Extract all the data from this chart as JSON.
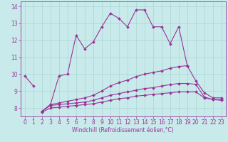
{
  "xlabel": "Windchill (Refroidissement éolien,°C)",
  "x_values": [
    0,
    1,
    2,
    3,
    4,
    5,
    6,
    7,
    8,
    9,
    10,
    11,
    12,
    13,
    14,
    15,
    16,
    17,
    18,
    19,
    20,
    21,
    22,
    23
  ],
  "main_line": [
    9.9,
    9.3,
    7.8,
    8.2,
    9.9,
    10.0,
    12.3,
    11.5,
    11.9,
    12.8,
    13.6,
    13.3,
    12.8,
    13.8,
    13.8,
    12.8,
    12.8,
    11.8,
    12.8,
    10.5,
    null,
    null,
    null,
    null
  ],
  "line2_split1_x": [
    0,
    1,
    2,
    3,
    4,
    5
  ],
  "line2_split1_y": [
    9.9,
    9.3,
    null,
    null,
    9.9,
    10.0
  ],
  "slow1": [
    null,
    null,
    7.8,
    8.2,
    8.3,
    8.4,
    8.5,
    8.6,
    8.75,
    9.0,
    9.3,
    9.5,
    9.65,
    9.85,
    10.0,
    10.1,
    10.2,
    10.35,
    10.45,
    10.5,
    9.6,
    8.9,
    8.6,
    8.6
  ],
  "slow2": [
    null,
    null,
    7.8,
    8.15,
    8.2,
    8.25,
    8.3,
    8.35,
    8.45,
    8.6,
    8.75,
    8.85,
    8.95,
    9.05,
    9.15,
    9.2,
    9.3,
    9.38,
    9.45,
    9.45,
    9.4,
    8.65,
    8.5,
    8.5
  ],
  "slow3": [
    null,
    null,
    7.75,
    8.0,
    8.05,
    8.1,
    8.15,
    8.2,
    8.25,
    8.35,
    8.45,
    8.55,
    8.6,
    8.7,
    8.75,
    8.8,
    8.85,
    8.9,
    8.95,
    8.95,
    8.95,
    8.6,
    8.5,
    8.45
  ],
  "color": "#993399",
  "bg_color": "#c8eaea",
  "grid_color": "#aad4d4",
  "ylim": [
    7.5,
    14.3
  ],
  "xlim": [
    -0.5,
    23.5
  ],
  "yticks": [
    8,
    9,
    10,
    11,
    12,
    13,
    14
  ],
  "xticks": [
    0,
    1,
    2,
    3,
    4,
    5,
    6,
    7,
    8,
    9,
    10,
    11,
    12,
    13,
    14,
    15,
    16,
    17,
    18,
    19,
    20,
    21,
    22,
    23
  ],
  "tick_fontsize": 5.5,
  "xlabel_fontsize": 5.5
}
